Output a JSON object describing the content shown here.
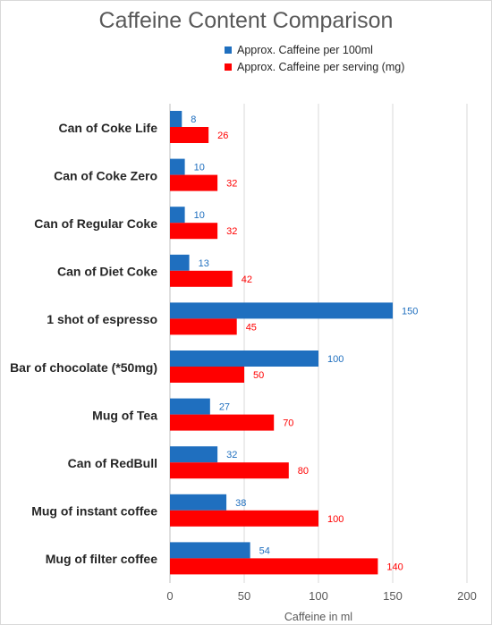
{
  "chart_data": {
    "type": "bar",
    "orientation": "horizontal",
    "title": "Caffeine Content Comparison",
    "xlabel": "Caffeine in ml",
    "ylabel": "",
    "xlim": [
      0,
      200
    ],
    "xticks": [
      0,
      50,
      100,
      150,
      200
    ],
    "grid": true,
    "legend_position": "top-right",
    "categories": [
      "Can of Coke Life",
      "Can of Coke Zero",
      "Can of Regular Coke",
      "Can of Diet Coke",
      "1 shot of espresso",
      "Bar of chocolate (*50mg)",
      "Mug of Tea",
      "Can of RedBull",
      "Mug of instant coffee",
      "Mug of filter coffee"
    ],
    "series": [
      {
        "name": "Approx. Caffeine per 100ml",
        "color": "#1f6fbf",
        "values": [
          8,
          10,
          10,
          13,
          150,
          100,
          27,
          32,
          38,
          54
        ]
      },
      {
        "name": "Approx. Caffeine per serving (mg)",
        "color": "#ff0000",
        "values": [
          26,
          32,
          32,
          42,
          45,
          50,
          70,
          80,
          100,
          140
        ]
      }
    ]
  }
}
